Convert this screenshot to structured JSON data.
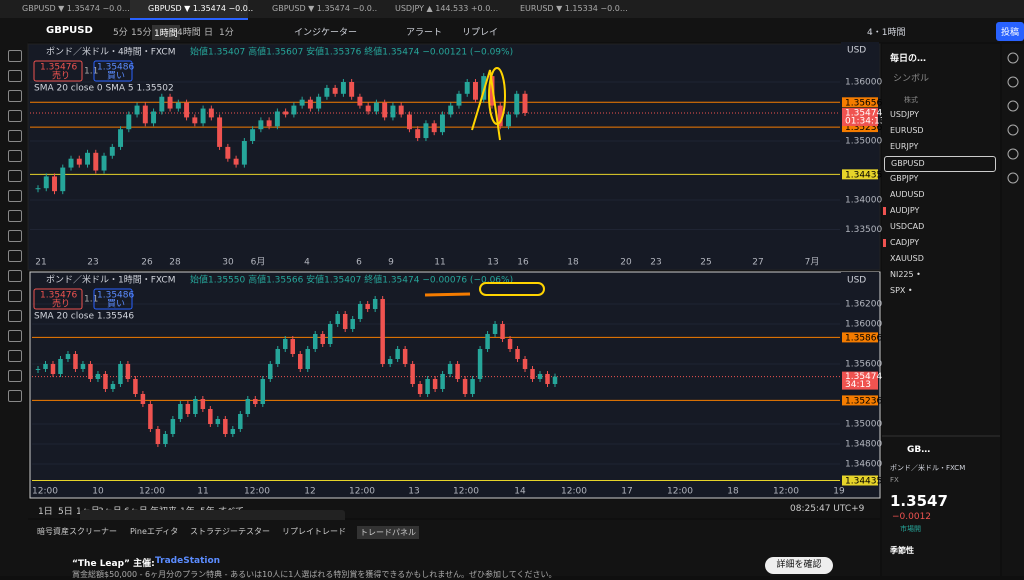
{
  "tabs": [
    "GBPUSD ▼ 1.35474 −0.0…",
    "GBPUSD ▼ 1.35474 −0.0…",
    "GBPUSD ▼ 1.35474 −0.0…",
    "USDJPY ▲ 144.533 +0.0…",
    "EURUSD ▼ 1.15334 −0.0…"
  ],
  "toolbar": {
    "symbol": "GBPUSD",
    "intervals": [
      "5分",
      "15分",
      "1時間",
      "4時間",
      "日",
      "1分"
    ],
    "indicators": "インジケーター",
    "alert": "アラート",
    "replay": "リプレイ",
    "layout": "4・1時間",
    "publish": "投稿"
  },
  "chart_data": [
    {
      "type": "candlestick",
      "title": "ポンド／米ドル・4時間・FXCM",
      "ohlc": "始値1.35407 高値1.35607 安値1.35376 終値1.35474 −0.00121 (−0.09%)",
      "sell": {
        "price": "1.35476",
        "label": "売り"
      },
      "buy": {
        "price": "1.35486",
        "label": "買い"
      },
      "spread": "1.1",
      "indicator": "SMA 20 close 0 SMA 5 1.35502",
      "currency": "USD",
      "x_labels": [
        "21",
        "23",
        "26",
        "28",
        "30",
        "6月",
        "4",
        "6",
        "9",
        "11",
        "13",
        "16",
        "18",
        "20",
        "23",
        "25",
        "27",
        "7月"
      ],
      "closes": [
        1.342,
        1.344,
        1.3415,
        1.3455,
        1.347,
        1.346,
        1.348,
        1.345,
        1.3475,
        1.349,
        1.352,
        1.3545,
        1.356,
        1.353,
        1.355,
        1.3575,
        1.3555,
        1.3565,
        1.354,
        1.353,
        1.3555,
        1.354,
        1.349,
        1.347,
        1.346,
        1.35,
        1.352,
        1.3535,
        1.3525,
        1.355,
        1.3545,
        1.356,
        1.357,
        1.3555,
        1.3575,
        1.359,
        1.358,
        1.36,
        1.3575,
        1.356,
        1.355,
        1.3565,
        1.354,
        1.356,
        1.3545,
        1.352,
        1.3505,
        1.353,
        1.3515,
        1.3545,
        1.356,
        1.358,
        1.36,
        1.357,
        1.361,
        1.356,
        1.3525,
        1.3545,
        1.358,
        1.35474
      ],
      "ylim": [
        1.33119,
        1.36644
      ],
      "yticks": [
        {
          "value": 1.36,
          "label": "1.36000"
        },
        {
          "value": 1.35,
          "label": "1.35000"
        },
        {
          "value": 1.34,
          "label": "1.34000"
        },
        {
          "value": 1.335,
          "label": "1.33500"
        }
      ],
      "levels": [
        {
          "value": 1.35656,
          "color": "#f57c00"
        },
        {
          "value": 1.35236,
          "color": "#f57c00"
        },
        {
          "value": 1.34435,
          "color": "#e6d42a"
        }
      ],
      "last": 1.35474,
      "countdown": "01:34:13",
      "up_color": "#26a69a",
      "down_color": "#ef5350"
    },
    {
      "type": "candlestick",
      "title": "ポンド／米ドル・1時間・FXCM",
      "ohlc": "始値1.35550 高値1.35566 安値1.35407 終値1.35474 −0.00076 (−0.06%)",
      "sell": {
        "price": "1.35476",
        "label": "売り"
      },
      "buy": {
        "price": "1.35486",
        "label": "買い"
      },
      "spread": "1.1",
      "indicator": "SMA 20 close 1.35546",
      "currency": "USD",
      "x_labels": [
        "12:00",
        "10",
        "12:00",
        "11",
        "12:00",
        "12",
        "12:00",
        "13",
        "12:00",
        "14",
        "12:00",
        "17",
        "12:00",
        "18",
        "12:00",
        "19"
      ],
      "closes": [
        1.3555,
        1.356,
        1.355,
        1.3565,
        1.357,
        1.3555,
        1.356,
        1.3545,
        1.355,
        1.3535,
        1.354,
        1.356,
        1.3545,
        1.353,
        1.352,
        1.3495,
        1.348,
        1.349,
        1.3505,
        1.352,
        1.351,
        1.3525,
        1.3515,
        1.35,
        1.3505,
        1.349,
        1.3495,
        1.351,
        1.3525,
        1.352,
        1.3545,
        1.356,
        1.3575,
        1.3585,
        1.357,
        1.3555,
        1.3575,
        1.359,
        1.358,
        1.36,
        1.361,
        1.3595,
        1.3605,
        1.362,
        1.3615,
        1.3625,
        1.356,
        1.3565,
        1.3575,
        1.356,
        1.354,
        1.353,
        1.3545,
        1.3535,
        1.355,
        1.356,
        1.3545,
        1.353,
        1.3545,
        1.3575,
        1.359,
        1.36,
        1.3585,
        1.3575,
        1.3565,
        1.3555,
        1.3545,
        1.355,
        1.354,
        1.35474
      ],
      "ylim": [
        1.344,
        1.365
      ],
      "yticks": [
        {
          "value": 1.362,
          "label": "1.36200"
        },
        {
          "value": 1.36,
          "label": "1.36000"
        },
        {
          "value": 1.356,
          "label": "1.35600"
        },
        {
          "value": 1.35,
          "label": "1.35000"
        },
        {
          "value": 1.348,
          "label": "1.34800"
        },
        {
          "value": 1.346,
          "label": "1.34600"
        }
      ],
      "levels": [
        {
          "value": 1.35866,
          "color": "#f57c00"
        },
        {
          "value": 1.35236,
          "color": "#f57c00"
        },
        {
          "value": 1.34435,
          "color": "#e6d42a"
        }
      ],
      "last": 1.35474,
      "countdown": "34:13",
      "up_color": "#26a69a",
      "down_color": "#ef5350"
    }
  ],
  "watchlist": {
    "title": "毎日の…",
    "column": "シンボル",
    "group": "株式",
    "symbols": [
      "USDJPY",
      "EURUSD",
      "EURJPY",
      "GBPUSD",
      "GBPJPY",
      "AUDUSD",
      "AUDJPY",
      "USDCAD",
      "CADJPY",
      "XAUUSD",
      "NI225 •",
      "SPX •"
    ]
  },
  "details": {
    "symbol": "GB…",
    "name": "ポンド／米ドル・FXCM",
    "market": "FX",
    "price": "1.3547",
    "change": "−0.0012",
    "status": "市場開",
    "seasonality": "季節性"
  },
  "ranges": [
    "1日",
    "5日",
    "1ヶ月",
    "3ヶ月",
    "6ヶ月",
    "年初来",
    "1年",
    "5年",
    "すべて"
  ],
  "clock": "08:25:47 UTC+9",
  "bottom_tabs": [
    "暗号資産スクリーナー",
    "Pineエディタ",
    "ストラテジーテスター",
    "リプレイトレード",
    "トレードパネル"
  ],
  "banner": {
    "title": "“The Leap” 主催:",
    "brand": "TradeStation",
    "text": "賞金総額$50,000 - 6ヶ月分のプラン特典 - あるいは10人に1人選ばれる特別賞を獲得できるかもしれません。ぜひ参加してください。",
    "button": "詳細を確認"
  }
}
